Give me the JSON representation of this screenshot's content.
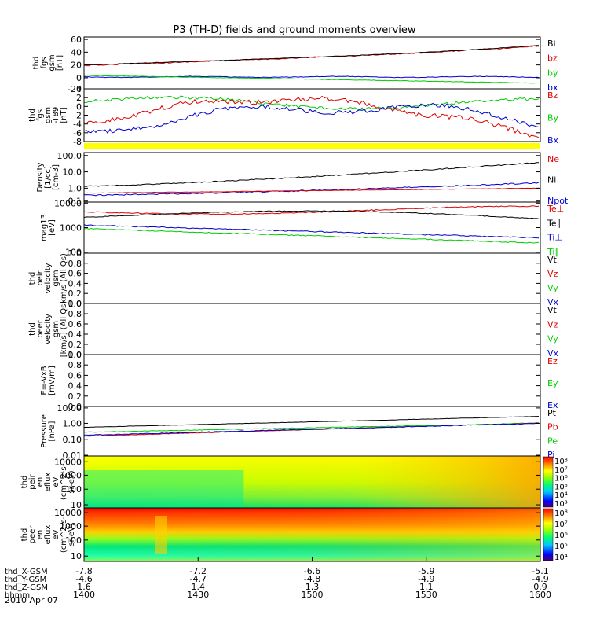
{
  "chart_data": {
    "type": "line",
    "title": "P3 (TH-D) fields and ground moments overview",
    "x_ticks": [
      "1400",
      "1430",
      "1500",
      "1530",
      "1600"
    ],
    "footer_rows": [
      {
        "label": "thd_X-GSM",
        "values": [
          "-7.8",
          "-7.2",
          "-6.6",
          "-5.9",
          "-5.1"
        ]
      },
      {
        "label": "thd_Y-GSM",
        "values": [
          "-4.6",
          "-4.7",
          "-4.8",
          "-4.9",
          "-4.9"
        ]
      },
      {
        "label": "thd_Z-GSM",
        "values": [
          "1.6",
          "1.4",
          "1.3",
          "1.1",
          "0.9"
        ]
      },
      {
        "label": "hhmm",
        "values": [
          "1400",
          "1430",
          "1500",
          "1530",
          "1600"
        ]
      }
    ],
    "date_label": "2010 Apr 07",
    "colors": {
      "black": "#000000",
      "red": "#dd0000",
      "green": "#00cc00",
      "blue": "#0000cc",
      "yellow": "#ffff00"
    },
    "panels": [
      {
        "id": "fgs",
        "ylabel": [
          "thd",
          "fgs",
          "gsm",
          "[nT]"
        ],
        "ticks": [
          "60",
          "40",
          "20",
          "0",
          "-20"
        ],
        "legend": [
          {
            "t": "Bt",
            "c": "black"
          },
          {
            "t": "bz",
            "c": "red"
          },
          {
            "t": "by",
            "c": "green"
          },
          {
            "t": "bx",
            "c": "blue"
          }
        ]
      },
      {
        "id": "t89",
        "ylabel": [
          "thd",
          "fgs",
          "gsm",
          "-T89",
          "[nT]"
        ],
        "ticks": [
          "4",
          "2",
          "0",
          "-2",
          "-4",
          "-6",
          "-8"
        ],
        "legend": [
          {
            "t": "Bz",
            "c": "red"
          },
          {
            "t": "By",
            "c": "green"
          },
          {
            "t": "Bx",
            "c": "blue"
          }
        ]
      },
      {
        "id": "density",
        "ylabel": [
          "Density",
          "[1/cc]",
          "[cm-3]"
        ],
        "ticks": [
          "100.0",
          "10.0",
          "1.0",
          "0.1"
        ],
        "legend": [
          {
            "t": "Ne",
            "c": "red"
          },
          {
            "t": "Ni",
            "c": "black"
          },
          {
            "t": "Npot",
            "c": "blue"
          }
        ]
      },
      {
        "id": "temp",
        "ylabel": [
          "mag13",
          "[eV]"
        ],
        "ticks": [
          "10000",
          "1000",
          "100"
        ],
        "legend": [
          {
            "t": "Te⊥",
            "c": "red"
          },
          {
            "t": "Te∥",
            "c": "black"
          },
          {
            "t": "Ti⊥",
            "c": "blue"
          },
          {
            "t": "Ti∥",
            "c": "green"
          }
        ]
      },
      {
        "id": "vpeir",
        "ylabel": [
          "thd",
          "peir",
          "velocity",
          "gsm",
          "km/s (All Qs)"
        ],
        "ticks": [
          "1.0",
          "0.8",
          "0.6",
          "0.4",
          "0.2",
          "0.0"
        ],
        "legend": [
          {
            "t": "Vt",
            "c": "black"
          },
          {
            "t": "Vz",
            "c": "red"
          },
          {
            "t": "Vy",
            "c": "green"
          },
          {
            "t": "Vx",
            "c": "blue"
          }
        ]
      },
      {
        "id": "vpeer",
        "ylabel": [
          "thd",
          "peer",
          "velocity",
          "gsm",
          "[km/s] (All Qs)"
        ],
        "ticks": [
          "1.0",
          "0.8",
          "0.6",
          "0.4",
          "0.2",
          "0.0"
        ],
        "legend": [
          {
            "t": "Vt",
            "c": "black"
          },
          {
            "t": "Vz",
            "c": "red"
          },
          {
            "t": "Vy",
            "c": "green"
          },
          {
            "t": "Vx",
            "c": "blue"
          }
        ]
      },
      {
        "id": "efield",
        "ylabel": [
          "E=-VxB",
          "[mV/m]"
        ],
        "ticks": [
          "1.0",
          "0.8",
          "0.6",
          "0.4",
          "0.2",
          "0.0"
        ],
        "legend": [
          {
            "t": "Ez",
            "c": "red"
          },
          {
            "t": "Ey",
            "c": "green"
          },
          {
            "t": "Ex",
            "c": "blue"
          }
        ]
      },
      {
        "id": "pressure",
        "ylabel": [
          "Pressure",
          "[nPa]"
        ],
        "ticks": [
          "10.00",
          "1.00",
          "0.10",
          "0.01"
        ],
        "legend": [
          {
            "t": "Pt",
            "c": "black"
          },
          {
            "t": "Pb",
            "c": "red"
          },
          {
            "t": "Pe",
            "c": "green"
          },
          {
            "t": "Pi",
            "c": "blue"
          }
        ]
      },
      {
        "id": "ion_spec",
        "ylabel": [
          "thd",
          "peir",
          "en",
          "eflux",
          "eV",
          "(cm^2-s-",
          "sr-eV)"
        ],
        "ticks": [
          "10000",
          "1000",
          "100",
          "10"
        ],
        "colorbar": [
          "10⁸",
          "10⁷",
          "10⁶",
          "10⁵",
          "10⁴",
          "10³"
        ]
      },
      {
        "id": "ele_spec",
        "ylabel": [
          "thd",
          "peer",
          "en",
          "eflux",
          "eV",
          "(cm^2-s-",
          "sr-eV)"
        ],
        "ticks": [
          "10000",
          "1000",
          "100",
          "10"
        ],
        "colorbar": [
          "10⁸",
          "10⁷",
          "10⁶",
          "10⁵",
          "10⁴"
        ]
      }
    ]
  }
}
